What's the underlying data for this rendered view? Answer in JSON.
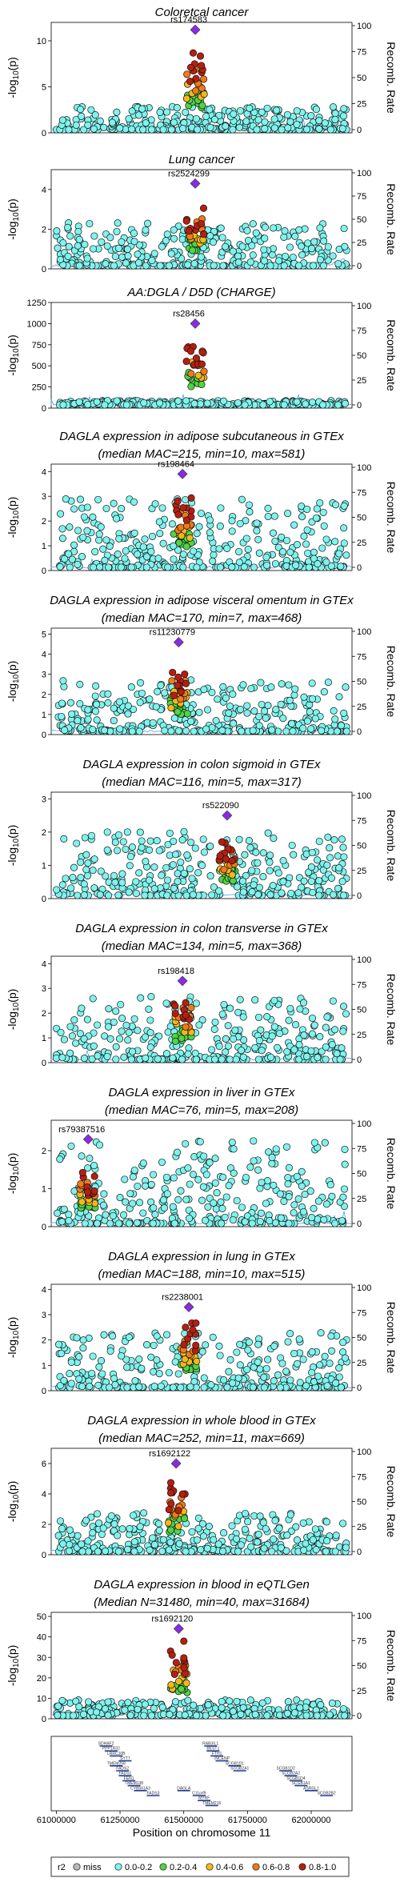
{
  "chart_data": {
    "type": "scatter",
    "xlabel": "Position on chromosome 11",
    "x_ticks": [
      61000000,
      61250000,
      61500000,
      61750000,
      62000000
    ],
    "x_tick_labels": [
      "61000000",
      "61250000",
      "61500000",
      "61750000",
      "62000000"
    ],
    "xlim": [
      60980000,
      62160000
    ],
    "right_axis_label": "Recomb. Rate",
    "right_ticks": [
      0,
      25,
      50,
      75,
      100
    ],
    "right_tick_labels": [
      "0",
      "25",
      "50",
      "75",
      "100"
    ],
    "panels": [
      {
        "title": [
          "Coloretcal cancer"
        ],
        "ylabel": "-log10(p)",
        "ylim": [
          0,
          12
        ],
        "y_ticks": [
          0,
          5,
          10
        ],
        "lead_snp": "rs174583",
        "lead_x": 61545000,
        "lead_y": 11.2,
        "bg_max": 2.6,
        "peak_max": 9.5,
        "seed": 11
      },
      {
        "title": [
          "Lung cancer"
        ],
        "ylabel": "-log10(p)",
        "ylim": [
          0,
          5
        ],
        "y_ticks": [
          0,
          2,
          4
        ],
        "lead_snp": "rs2524299",
        "lead_x": 61545000,
        "lead_y": 4.3,
        "bg_max": 2.2,
        "peak_max": 3.2,
        "seed": 23
      },
      {
        "title": [
          "AA:DGLA / D5D (CHARGE)"
        ],
        "ylabel": "-log10(p)",
        "ylim": [
          0,
          1250
        ],
        "y_ticks": [
          0,
          250,
          500,
          750,
          1000,
          1250
        ],
        "lead_snp": "rs28456",
        "lead_x": 61545000,
        "lead_y": 1000,
        "bg_max": 60,
        "peak_max": 900,
        "seed": 37
      },
      {
        "title": [
          "DAGLA expression in adipose subcutaneous in GTEx",
          "(median MAC=215, min=10, max=581)"
        ],
        "ylabel": "-log10(p)",
        "ylim": [
          0,
          4.3
        ],
        "y_ticks": [
          0,
          1,
          2,
          3,
          4
        ],
        "lead_snp": "rs198464",
        "lead_x": 61495000,
        "lead_y": 3.9,
        "bg_max": 2.8,
        "peak_max": 3.2,
        "seed": 41
      },
      {
        "title": [
          "DAGLA expression in adipose visceral omentum in GTEx",
          "(median MAC=170, min=7, max=468)"
        ],
        "ylabel": "-log10(p)",
        "ylim": [
          0,
          5.3
        ],
        "y_ticks": [
          0,
          1,
          2,
          3,
          4,
          5
        ],
        "lead_snp": "rs11230779",
        "lead_x": 61480000,
        "lead_y": 4.6,
        "bg_max": 2.6,
        "peak_max": 3.6,
        "seed": 53
      },
      {
        "title": [
          "DAGLA expression in colon sigmoid in GTEx",
          "(median MAC=116, min=5, max=317)"
        ],
        "ylabel": "-log10(p)",
        "ylim": [
          0,
          3.2
        ],
        "y_ticks": [
          0,
          1,
          2,
          3
        ],
        "lead_snp": "rs522090",
        "lead_x": 61670000,
        "lead_y": 2.5,
        "bg_max": 2.0,
        "peak_max": 1.8,
        "seed": 61
      },
      {
        "title": [
          "DAGLA expression in colon transverse in GTEx",
          "(median MAC=134, min=5, max=368)"
        ],
        "ylabel": "-log10(p)",
        "ylim": [
          0,
          4.3
        ],
        "y_ticks": [
          0,
          1,
          2,
          3,
          4
        ],
        "lead_snp": "rs198418",
        "lead_x": 61495000,
        "lead_y": 3.3,
        "bg_max": 2.6,
        "peak_max": 3.0,
        "seed": 71
      },
      {
        "title": [
          "DAGLA expression in liver in GTEx",
          "(median MAC=76, min=5, max=208)"
        ],
        "ylabel": "-log10(p)",
        "ylim": [
          0,
          2.8
        ],
        "y_ticks": [
          0,
          1,
          2
        ],
        "lead_snp": "rs79387516",
        "lead_x": 61125000,
        "lead_y": 2.3,
        "bg_max": 2.2,
        "peak_max": 1.5,
        "seed": 83
      },
      {
        "title": [
          "DAGLA expression in lung in GTEx",
          "(median MAC=188, min=10, max=515)"
        ],
        "ylabel": "-log10(p)",
        "ylim": [
          0,
          4.2
        ],
        "y_ticks": [
          0,
          1,
          2,
          3,
          4
        ],
        "lead_snp": "rs2238001",
        "lead_x": 61520000,
        "lead_y": 3.3,
        "bg_max": 2.2,
        "peak_max": 2.8,
        "seed": 97
      },
      {
        "title": [
          "DAGLA expression in whole blood in GTEx",
          "(median MAC=252, min=11, max=669)"
        ],
        "ylabel": "-log10(p)",
        "ylim": [
          0,
          7
        ],
        "y_ticks": [
          0,
          2,
          4,
          6
        ],
        "lead_snp": "rs1692122",
        "lead_x": 61470000,
        "lead_y": 6.0,
        "bg_max": 2.6,
        "peak_max": 5.2,
        "seed": 101
      },
      {
        "title": [
          "DAGLA expression in blood in eQTLGen",
          "(Median N=31480, min=40, max=31684)"
        ],
        "ylabel": "-log10(p)",
        "ylim": [
          0,
          52
        ],
        "y_ticks": [
          0,
          10,
          20,
          30,
          40,
          50
        ],
        "lead_snp": "rs1692120",
        "lead_x": 61480000,
        "lead_y": 44,
        "bg_max": 8,
        "peak_max": 40,
        "seed": 113
      }
    ],
    "genes": [
      {
        "name": "SDHAF2",
        "x": 61195000,
        "row": 0
      },
      {
        "name": "PPP1R32",
        "x": 61215000,
        "row": 1
      },
      {
        "name": "LRRC10B",
        "x": 61235000,
        "row": 2
      },
      {
        "name": "SYT7",
        "x": 61270000,
        "row": 3
      },
      {
        "name": "TMEM258",
        "x": 61235000,
        "row": 4
      },
      {
        "name": "FADS2",
        "x": 61260000,
        "row": 5
      },
      {
        "name": "FADS1",
        "x": 61270000,
        "row": 6
      },
      {
        "name": "FEN1",
        "x": 61285000,
        "row": 7
      },
      {
        "name": "TMEM138",
        "x": 61305000,
        "row": 8
      },
      {
        "name": "CYB561A3",
        "x": 61330000,
        "row": 9
      },
      {
        "name": "FADS3",
        "x": 61380000,
        "row": 10
      },
      {
        "name": "RAB3IL1",
        "x": 61605000,
        "row": 0
      },
      {
        "name": "BEST1",
        "x": 61615000,
        "row": 1
      },
      {
        "name": "FTH1",
        "x": 61630000,
        "row": 2
      },
      {
        "name": "INCENP",
        "x": 61650000,
        "row": 3
      },
      {
        "name": "SCGB1D1",
        "x": 61700000,
        "row": 4
      },
      {
        "name": "SCGB2A1",
        "x": 61720000,
        "row": 5
      },
      {
        "name": "DAGLA",
        "x": 61500000,
        "row": 9
      },
      {
        "name": "C11orf9",
        "x": 61560000,
        "row": 10
      },
      {
        "name": "MYRF",
        "x": 61580000,
        "row": 11
      },
      {
        "name": "TMEM216",
        "x": 61610000,
        "row": 12
      },
      {
        "name": "SCGB1D2",
        "x": 61900000,
        "row": 5
      },
      {
        "name": "SCGB2A2",
        "x": 61920000,
        "row": 6
      },
      {
        "name": "SCGB1D4",
        "x": 61940000,
        "row": 7
      },
      {
        "name": "SCGB1A1",
        "x": 61960000,
        "row": 8
      },
      {
        "name": "ASRGL1",
        "x": 62000000,
        "row": 9
      },
      {
        "name": "SCGB2B2",
        "x": 62060000,
        "row": 10
      }
    ],
    "legend": {
      "title": "r2",
      "entries": [
        {
          "label": "miss",
          "color": "#b8b8b8"
        },
        {
          "label": "0.0-0.2",
          "color": "#7ff3ee"
        },
        {
          "label": "0.2-0.4",
          "color": "#4fd445"
        },
        {
          "label": "0.4-0.6",
          "color": "#f3b71c"
        },
        {
          "label": "0.6-0.8",
          "color": "#f07a19"
        },
        {
          "label": "0.8-1.0",
          "color": "#b61f10"
        }
      ],
      "lead_color": "#8a2be2",
      "recomb_color": "#4f9ef5"
    }
  }
}
